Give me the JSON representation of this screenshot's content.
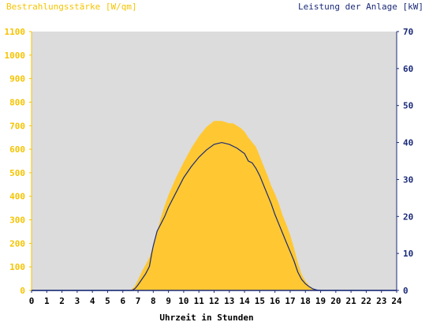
{
  "chart_data": {
    "type": "area",
    "left_axis_title": "Bestrahlungsstärke [W/qm]",
    "right_axis_title": "Leistung der Anlage [kW]",
    "xlabel": "Uhrzeit in Stunden",
    "xlim": [
      0,
      24
    ],
    "x_ticks": [
      "0",
      "1",
      "2",
      "3",
      "4",
      "5",
      "6",
      "7",
      "8",
      "9",
      "10",
      "11",
      "12",
      "13",
      "14",
      "15",
      "16",
      "17",
      "18",
      "19",
      "20",
      "21",
      "22",
      "23",
      "24"
    ],
    "ylim_left": [
      0,
      1100
    ],
    "y_ticks_left": [
      "0",
      "100",
      "200",
      "300",
      "400",
      "500",
      "600",
      "700",
      "800",
      "900",
      "1000",
      "1100"
    ],
    "ylim_right": [
      0,
      70
    ],
    "y_ticks_right": [
      "0",
      "10",
      "20",
      "30",
      "40",
      "50",
      "60",
      "70"
    ],
    "grid": false,
    "colors": {
      "plot_bg": "#dcdcdc",
      "irradiance": "#ffc832",
      "power": "#1a2a78",
      "left_axis": "#f5c400",
      "right_axis": "#1a2a78"
    },
    "series": [
      {
        "name": "Bestrahlungsstärke",
        "axis": "left",
        "style": "area",
        "x": [
          0,
          6.5,
          6.75,
          7.0,
          7.25,
          7.5,
          7.75,
          8.0,
          8.25,
          8.5,
          8.75,
          9.0,
          9.5,
          10.0,
          10.5,
          11.0,
          11.5,
          12.0,
          12.5,
          13.0,
          13.25,
          13.5,
          13.75,
          14.0,
          14.25,
          14.5,
          14.75,
          15.0,
          15.25,
          15.5,
          15.75,
          16.0,
          16.25,
          16.5,
          16.75,
          17.0,
          17.25,
          17.5,
          17.75,
          18.0,
          18.25,
          18.5,
          18.75,
          19.0,
          24
        ],
        "values": [
          0,
          0,
          15,
          45,
          80,
          110,
          140,
          190,
          250,
          310,
          360,
          405,
          480,
          545,
          605,
          655,
          695,
          720,
          720,
          710,
          710,
          700,
          690,
          675,
          650,
          630,
          610,
          570,
          530,
          490,
          445,
          410,
          370,
          320,
          280,
          235,
          180,
          120,
          70,
          40,
          20,
          8,
          3,
          0,
          0
        ]
      },
      {
        "name": "Leistung der Anlage",
        "axis": "right",
        "style": "line",
        "x": [
          0,
          6.6,
          6.8,
          7.0,
          7.25,
          7.5,
          7.75,
          7.9,
          8.0,
          8.25,
          8.5,
          8.75,
          9.0,
          9.5,
          10.0,
          10.5,
          11.0,
          11.5,
          12.0,
          12.5,
          13.0,
          13.5,
          14.0,
          14.25,
          14.5,
          14.75,
          15.0,
          15.25,
          15.5,
          15.75,
          16.0,
          16.25,
          16.5,
          16.75,
          17.0,
          17.25,
          17.5,
          17.75,
          18.0,
          18.25,
          18.5,
          18.75,
          19.0,
          24
        ],
        "values": [
          0,
          0,
          0.5,
          1.5,
          3.0,
          4.5,
          6.5,
          10,
          12,
          16,
          18,
          20,
          22.5,
          26.5,
          30.5,
          33.5,
          36,
          38,
          39.5,
          40,
          39.5,
          38.5,
          37,
          35,
          34.5,
          33,
          31,
          28.5,
          26,
          23.5,
          20.5,
          18,
          15.5,
          13,
          10.5,
          8,
          5,
          3,
          1.8,
          1.0,
          0.4,
          0.1,
          0,
          0
        ]
      }
    ]
  }
}
